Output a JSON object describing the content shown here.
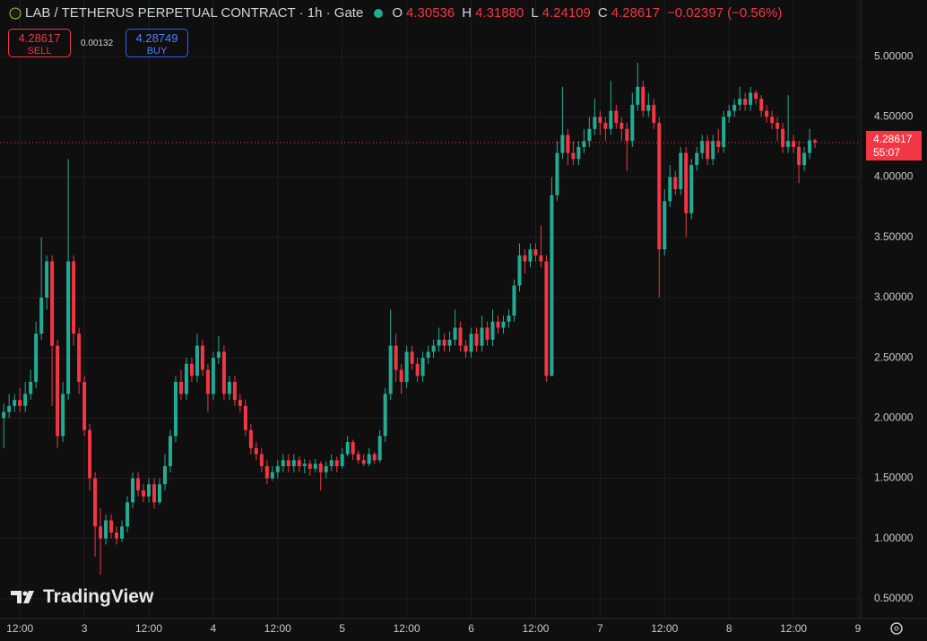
{
  "header": {
    "title": "LAB / TETHERUS PERPETUAL CONTRACT · 1h · Gate",
    "open_label": "O",
    "open": "4.30536",
    "high_label": "H",
    "high": "4.31880",
    "low_label": "L",
    "low": "4.24109",
    "close_label": "C",
    "close": "4.28617",
    "change": "−0.02397 (−0.56%)"
  },
  "trade": {
    "sell_price": "4.28617",
    "sell": "SELL",
    "spread": "0.00132",
    "buy_price": "4.28749",
    "buy": "BUY"
  },
  "price_label": {
    "price": "4.28617",
    "countdown": "55:07"
  },
  "logo": "TradingView",
  "chart_data": {
    "type": "candlestick",
    "up_color": "#22ab94",
    "down_color": "#f23645",
    "grid": true,
    "xlim": [
      -15.7,
      144.5
    ],
    "xticks": [
      {
        "value": -12,
        "label": "12:00"
      },
      {
        "value": 0,
        "label": "3"
      },
      {
        "value": 12,
        "label": "12:00"
      },
      {
        "value": 24,
        "label": "4"
      },
      {
        "value": 36,
        "label": "12:00"
      },
      {
        "value": 48,
        "label": "5"
      },
      {
        "value": 60,
        "label": "12:00"
      },
      {
        "value": 72,
        "label": "6"
      },
      {
        "value": 84,
        "label": "12:00"
      },
      {
        "value": 96,
        "label": "7"
      },
      {
        "value": 108,
        "label": "12:00"
      },
      {
        "value": 120,
        "label": "8"
      },
      {
        "value": 132,
        "label": "12:00"
      },
      {
        "value": 144,
        "label": "9"
      }
    ],
    "ylim": [
      0.335,
      5.47
    ],
    "yticks": [
      {
        "value": 0.5,
        "label": "0.50000"
      },
      {
        "value": 1,
        "label": "1.00000"
      },
      {
        "value": 1.5,
        "label": "1.50000"
      },
      {
        "value": 2,
        "label": "2.00000"
      },
      {
        "value": 2.5,
        "label": "2.50000"
      },
      {
        "value": 3,
        "label": "3.00000"
      },
      {
        "value": 3.5,
        "label": "3.50000"
      },
      {
        "value": 4,
        "label": "4.00000"
      },
      {
        "value": 4.5,
        "label": "4.50000"
      },
      {
        "value": 5,
        "label": "5.00000"
      }
    ],
    "candles": [
      [
        -15,
        2.0,
        2.12,
        1.75,
        2.05
      ],
      [
        -14,
        2.05,
        2.2,
        2.0,
        2.1
      ],
      [
        -13,
        2.1,
        2.2,
        2.05,
        2.15
      ],
      [
        -12,
        2.15,
        2.25,
        2.05,
        2.1
      ],
      [
        -11,
        2.1,
        2.3,
        2.05,
        2.2
      ],
      [
        -10,
        2.2,
        2.4,
        2.15,
        2.3
      ],
      [
        -9,
        2.3,
        2.8,
        2.25,
        2.7
      ],
      [
        -8,
        2.7,
        3.5,
        2.65,
        3.0
      ],
      [
        -7,
        3.0,
        3.35,
        2.9,
        3.3
      ],
      [
        -6,
        3.3,
        3.35,
        2.1,
        2.6
      ],
      [
        -5,
        2.6,
        2.65,
        1.75,
        1.85
      ],
      [
        -4,
        1.85,
        2.3,
        1.8,
        2.2
      ],
      [
        -3,
        2.2,
        4.15,
        2.15,
        3.3
      ],
      [
        -2,
        3.3,
        3.35,
        2.6,
        2.7
      ],
      [
        -1,
        2.7,
        2.75,
        2.2,
        2.3
      ],
      [
        0,
        2.3,
        2.35,
        1.85,
        1.9
      ],
      [
        1,
        1.9,
        1.95,
        1.4,
        1.5
      ],
      [
        2,
        1.5,
        1.55,
        0.85,
        1.1
      ],
      [
        3,
        1.1,
        1.25,
        0.7,
        1.0
      ],
      [
        4,
        1.0,
        1.2,
        0.95,
        1.15
      ],
      [
        5,
        1.15,
        1.2,
        1.0,
        1.05
      ],
      [
        6,
        1.05,
        1.1,
        0.95,
        1.0
      ],
      [
        7,
        1.0,
        1.15,
        0.97,
        1.1
      ],
      [
        8,
        1.1,
        1.35,
        1.05,
        1.3
      ],
      [
        9,
        1.3,
        1.55,
        1.25,
        1.5
      ],
      [
        10,
        1.5,
        1.55,
        1.35,
        1.4
      ],
      [
        11,
        1.4,
        1.45,
        1.3,
        1.35
      ],
      [
        12,
        1.35,
        1.5,
        1.3,
        1.45
      ],
      [
        13,
        1.45,
        1.5,
        1.25,
        1.3
      ],
      [
        14,
        1.3,
        1.5,
        1.28,
        1.45
      ],
      [
        15,
        1.45,
        1.7,
        1.4,
        1.6
      ],
      [
        16,
        1.6,
        1.9,
        1.55,
        1.85
      ],
      [
        17,
        1.85,
        2.35,
        1.8,
        2.3
      ],
      [
        18,
        2.3,
        2.4,
        2.15,
        2.2
      ],
      [
        19,
        2.2,
        2.5,
        2.15,
        2.45
      ],
      [
        20,
        2.45,
        2.5,
        2.3,
        2.35
      ],
      [
        21,
        2.35,
        2.7,
        2.3,
        2.6
      ],
      [
        22,
        2.6,
        2.65,
        2.35,
        2.4
      ],
      [
        23,
        2.4,
        2.45,
        2.05,
        2.2
      ],
      [
        24,
        2.2,
        2.55,
        2.15,
        2.5
      ],
      [
        25,
        2.5,
        2.68,
        2.45,
        2.55
      ],
      [
        26,
        2.55,
        2.6,
        2.15,
        2.2
      ],
      [
        27,
        2.2,
        2.35,
        2.15,
        2.3
      ],
      [
        28,
        2.3,
        2.35,
        2.1,
        2.15
      ],
      [
        29,
        2.15,
        2.2,
        2.05,
        2.1
      ],
      [
        30,
        2.1,
        2.15,
        1.85,
        1.9
      ],
      [
        31,
        1.9,
        1.95,
        1.7,
        1.75
      ],
      [
        32,
        1.75,
        1.8,
        1.65,
        1.7
      ],
      [
        33,
        1.7,
        1.75,
        1.55,
        1.6
      ],
      [
        34,
        1.6,
        1.65,
        1.45,
        1.5
      ],
      [
        35,
        1.5,
        1.6,
        1.48,
        1.55
      ],
      [
        36,
        1.55,
        1.65,
        1.5,
        1.6
      ],
      [
        37,
        1.6,
        1.7,
        1.55,
        1.65
      ],
      [
        38,
        1.65,
        1.7,
        1.55,
        1.6
      ],
      [
        39,
        1.6,
        1.7,
        1.55,
        1.65
      ],
      [
        40,
        1.65,
        1.68,
        1.55,
        1.6
      ],
      [
        41,
        1.6,
        1.66,
        1.54,
        1.62
      ],
      [
        42,
        1.62,
        1.65,
        1.52,
        1.58
      ],
      [
        43,
        1.58,
        1.66,
        1.55,
        1.62
      ],
      [
        44,
        1.62,
        1.64,
        1.4,
        1.55
      ],
      [
        45,
        1.55,
        1.64,
        1.5,
        1.6
      ],
      [
        46,
        1.6,
        1.7,
        1.56,
        1.65
      ],
      [
        47,
        1.65,
        1.68,
        1.55,
        1.6
      ],
      [
        48,
        1.6,
        1.75,
        1.58,
        1.7
      ],
      [
        49,
        1.7,
        1.85,
        1.68,
        1.8
      ],
      [
        50,
        1.8,
        1.82,
        1.65,
        1.7
      ],
      [
        51,
        1.7,
        1.73,
        1.62,
        1.65
      ],
      [
        52,
        1.65,
        1.7,
        1.6,
        1.62
      ],
      [
        53,
        1.62,
        1.75,
        1.6,
        1.7
      ],
      [
        54,
        1.7,
        1.72,
        1.62,
        1.65
      ],
      [
        55,
        1.65,
        1.9,
        1.63,
        1.85
      ],
      [
        56,
        1.85,
        2.25,
        1.8,
        2.2
      ],
      [
        57,
        2.2,
        2.9,
        2.15,
        2.6
      ],
      [
        58,
        2.6,
        2.7,
        2.3,
        2.4
      ],
      [
        59,
        2.4,
        2.45,
        2.2,
        2.3
      ],
      [
        60,
        2.3,
        2.6,
        2.25,
        2.55
      ],
      [
        61,
        2.55,
        2.6,
        2.4,
        2.45
      ],
      [
        62,
        2.45,
        2.5,
        2.3,
        2.35
      ],
      [
        63,
        2.35,
        2.55,
        2.3,
        2.5
      ],
      [
        64,
        2.5,
        2.6,
        2.45,
        2.55
      ],
      [
        65,
        2.55,
        2.65,
        2.5,
        2.6
      ],
      [
        66,
        2.6,
        2.75,
        2.55,
        2.65
      ],
      [
        67,
        2.65,
        2.7,
        2.55,
        2.6
      ],
      [
        68,
        2.6,
        2.72,
        2.55,
        2.65
      ],
      [
        69,
        2.65,
        2.9,
        2.6,
        2.75
      ],
      [
        70,
        2.75,
        2.8,
        2.55,
        2.6
      ],
      [
        71,
        2.6,
        2.65,
        2.5,
        2.55
      ],
      [
        72,
        2.55,
        2.75,
        2.5,
        2.7
      ],
      [
        73,
        2.7,
        2.75,
        2.55,
        2.6
      ],
      [
        74,
        2.6,
        2.85,
        2.55,
        2.75
      ],
      [
        75,
        2.75,
        2.8,
        2.6,
        2.65
      ],
      [
        76,
        2.65,
        2.9,
        2.6,
        2.8
      ],
      [
        77,
        2.8,
        2.85,
        2.7,
        2.75
      ],
      [
        78,
        2.75,
        2.85,
        2.7,
        2.8
      ],
      [
        79,
        2.8,
        2.9,
        2.75,
        2.85
      ],
      [
        80,
        2.85,
        3.15,
        2.8,
        3.1
      ],
      [
        81,
        3.1,
        3.45,
        3.05,
        3.35
      ],
      [
        82,
        3.35,
        3.4,
        3.2,
        3.3
      ],
      [
        83,
        3.3,
        3.45,
        3.25,
        3.4
      ],
      [
        84,
        3.4,
        3.45,
        3.3,
        3.35
      ],
      [
        85,
        3.35,
        3.6,
        3.25,
        3.3
      ],
      [
        86,
        3.3,
        3.35,
        2.3,
        2.35
      ],
      [
        87,
        2.35,
        4.0,
        2.35,
        3.85
      ],
      [
        88,
        3.85,
        4.3,
        3.8,
        4.2
      ],
      [
        89,
        4.2,
        4.75,
        4.15,
        4.35
      ],
      [
        90,
        4.35,
        4.4,
        4.1,
        4.2
      ],
      [
        91,
        4.2,
        4.3,
        4.1,
        4.15
      ],
      [
        92,
        4.15,
        4.3,
        4.1,
        4.25
      ],
      [
        93,
        4.25,
        4.4,
        4.2,
        4.3
      ],
      [
        94,
        4.3,
        4.5,
        4.25,
        4.4
      ],
      [
        95,
        4.4,
        4.65,
        4.35,
        4.5
      ],
      [
        96,
        4.5,
        4.55,
        4.35,
        4.45
      ],
      [
        97,
        4.45,
        4.5,
        4.3,
        4.4
      ],
      [
        98,
        4.4,
        4.8,
        4.35,
        4.55
      ],
      [
        99,
        4.55,
        4.6,
        4.4,
        4.45
      ],
      [
        100,
        4.45,
        4.5,
        4.3,
        4.4
      ],
      [
        101,
        4.4,
        4.45,
        4.05,
        4.3
      ],
      [
        102,
        4.3,
        4.7,
        4.25,
        4.6
      ],
      [
        103,
        4.6,
        4.95,
        4.55,
        4.75
      ],
      [
        104,
        4.75,
        4.8,
        4.5,
        4.55
      ],
      [
        105,
        4.55,
        4.7,
        4.5,
        4.6
      ],
      [
        106,
        4.6,
        4.65,
        4.4,
        4.45
      ],
      [
        107,
        4.45,
        4.5,
        3.0,
        3.4
      ],
      [
        108,
        3.4,
        3.9,
        3.35,
        3.8
      ],
      [
        109,
        3.8,
        4.1,
        3.75,
        4.0
      ],
      [
        110,
        4.0,
        4.05,
        3.85,
        3.9
      ],
      [
        111,
        3.9,
        4.25,
        3.85,
        4.2
      ],
      [
        112,
        4.2,
        4.25,
        3.5,
        3.7
      ],
      [
        113,
        3.7,
        4.15,
        3.65,
        4.1
      ],
      [
        114,
        4.1,
        4.25,
        4.05,
        4.2
      ],
      [
        115,
        4.2,
        4.35,
        4.15,
        4.3
      ],
      [
        116,
        4.3,
        4.35,
        4.1,
        4.15
      ],
      [
        117,
        4.15,
        4.35,
        4.1,
        4.3
      ],
      [
        118,
        4.3,
        4.4,
        4.2,
        4.25
      ],
      [
        119,
        4.25,
        4.55,
        4.2,
        4.5
      ],
      [
        120,
        4.5,
        4.6,
        4.45,
        4.55
      ],
      [
        121,
        4.55,
        4.65,
        4.5,
        4.6
      ],
      [
        122,
        4.6,
        4.75,
        4.55,
        4.65
      ],
      [
        123,
        4.65,
        4.7,
        4.55,
        4.6
      ],
      [
        124,
        4.6,
        4.75,
        4.55,
        4.7
      ],
      [
        125,
        4.7,
        4.72,
        4.6,
        4.65
      ],
      [
        126,
        4.65,
        4.68,
        4.5,
        4.55
      ],
      [
        127,
        4.55,
        4.6,
        4.45,
        4.5
      ],
      [
        128,
        4.5,
        4.55,
        4.4,
        4.45
      ],
      [
        129,
        4.45,
        4.5,
        4.3,
        4.4
      ],
      [
        130,
        4.4,
        4.45,
        4.2,
        4.25
      ],
      [
        131,
        4.25,
        4.68,
        4.2,
        4.3
      ],
      [
        132,
        4.3,
        4.35,
        4.2,
        4.25
      ],
      [
        133,
        4.25,
        4.3,
        3.95,
        4.1
      ],
      [
        134,
        4.1,
        4.25,
        4.05,
        4.2
      ],
      [
        135,
        4.2,
        4.4,
        4.15,
        4.30536
      ],
      [
        136,
        4.30536,
        4.3188,
        4.24109,
        4.28617
      ]
    ]
  }
}
